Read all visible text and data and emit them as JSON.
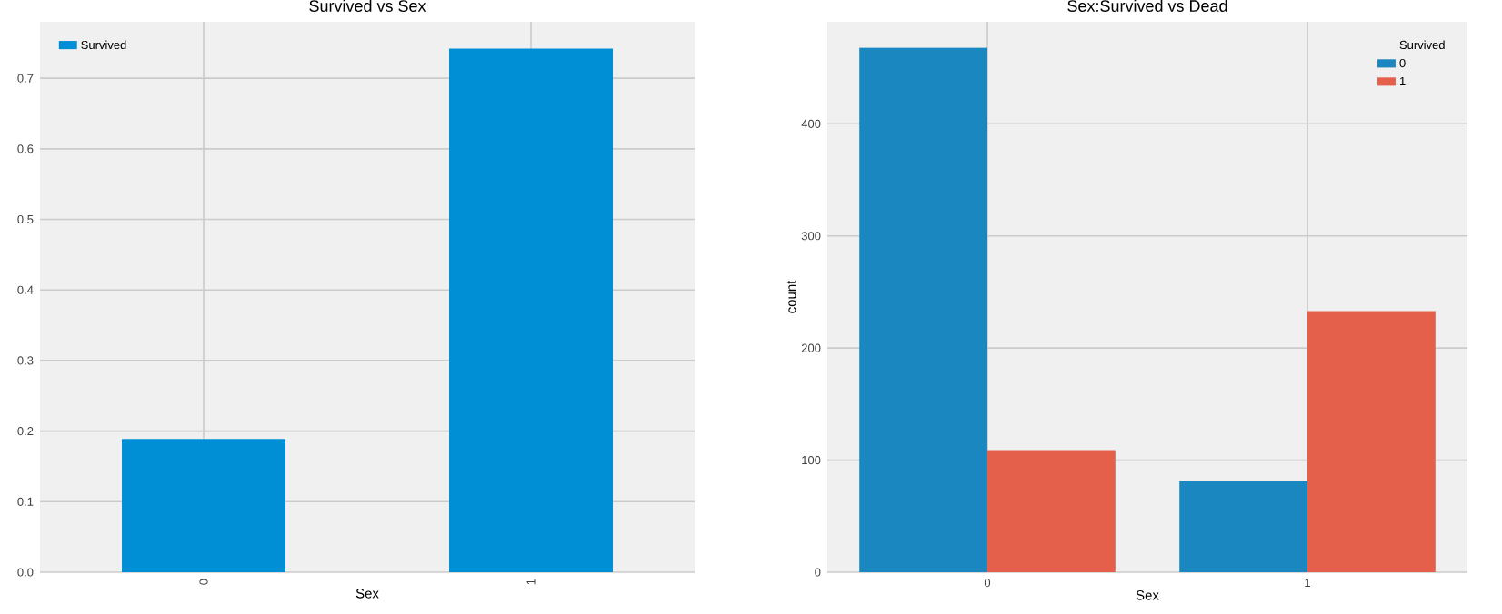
{
  "chart_data": [
    {
      "type": "bar",
      "title": "Survived vs Sex",
      "xlabel": "Sex",
      "categories": [
        "0",
        "1"
      ],
      "series": [
        {
          "name": "Survived",
          "color": "#008fd5",
          "values": [
            0.189,
            0.742
          ]
        }
      ],
      "ylim": [
        0,
        0.78
      ],
      "yticks": [
        {
          "value": 0,
          "label": "0.0"
        },
        0.1,
        0.2,
        0.3,
        0.4,
        0.5,
        0.6,
        0.7
      ],
      "grid": true,
      "legend": "top left"
    },
    {
      "type": "bar",
      "title": "Sex:Survived vs Dead",
      "xlabel": "Sex",
      "ylabel": "count",
      "legend_title": "Survived",
      "categories": [
        "0",
        "1"
      ],
      "series": [
        {
          "name": "0",
          "color": "#1b87c1",
          "values": [
            468,
            81
          ]
        },
        {
          "name": "1",
          "color": "#e5604a",
          "values": [
            109,
            233
          ]
        }
      ],
      "ylim": [
        0,
        491
      ],
      "yticks": [
        0,
        100,
        200,
        300,
        400
      ],
      "grid": true,
      "legend": "top right"
    }
  ]
}
